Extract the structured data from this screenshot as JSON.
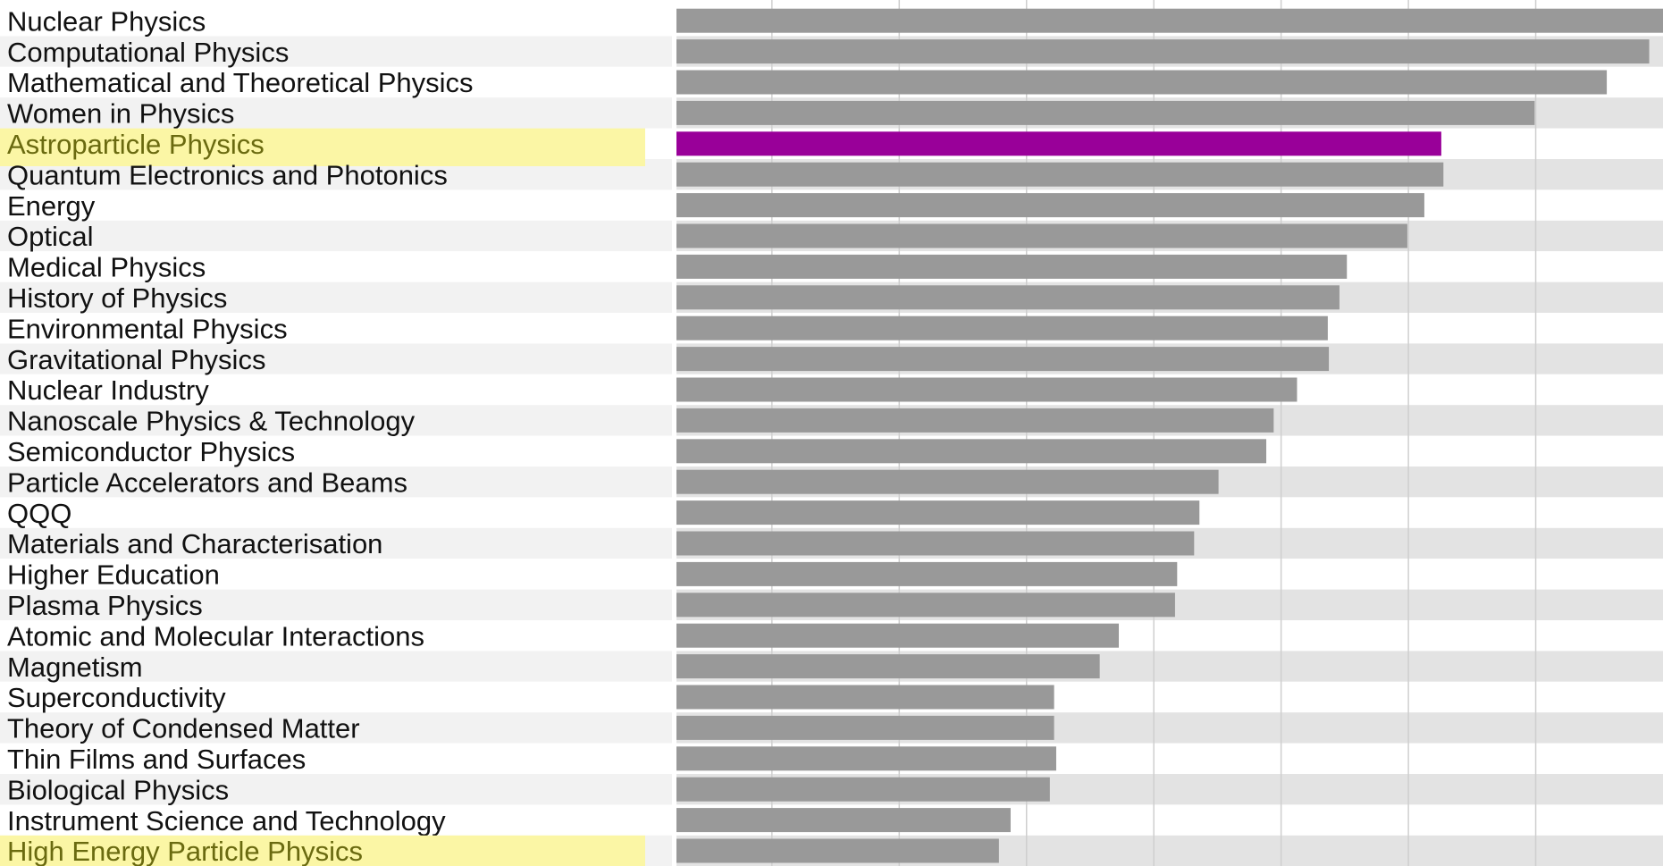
{
  "chart_data": {
    "type": "bar",
    "orientation": "horizontal",
    "title": "",
    "xlabel": "",
    "ylabel": "",
    "xlim": [
      0,
      93
    ],
    "grid": true,
    "categories": [
      "Nuclear Physics",
      "Computational Physics",
      "Mathematical and Theoretical Physics",
      "Women in Physics",
      "Astroparticle Physics",
      "Quantum Electronics and Photonics",
      "Energy",
      "Optical",
      "Medical Physics",
      "History of Physics",
      "Environmental Physics",
      "Gravitational Physics",
      "Nuclear Industry",
      "Nanoscale Physics & Technology",
      "Semiconductor Physics",
      "Particle Accelerators and Beams",
      "QQQ",
      "Materials and Characterisation",
      "Higher Education",
      "Plasma Physics",
      "Atomic and Molecular Interactions",
      "Magnetism",
      "Superconductivity",
      "Theory of Condensed Matter",
      "Thin Films and Surfaces",
      "Biological Physics",
      "Instrument Science and Technology",
      "High Energy Particle Physics"
    ],
    "values": [
      93.3,
      91.7,
      87.7,
      80.9,
      72.1,
      72.3,
      70.5,
      68.9,
      63.2,
      62.5,
      61.4,
      61.5,
      58.5,
      56.3,
      55.6,
      51.1,
      49.3,
      48.8,
      47.2,
      47.0,
      41.7,
      39.9,
      35.6,
      35.6,
      35.8,
      35.2,
      31.5,
      30.4
    ],
    "highlighted_categories": [
      "Astroparticle Physics",
      "High Energy Particle Physics"
    ],
    "colors": {
      "bar": "#999999",
      "highlight_bar": "#990099",
      "label_highlight_bg": "#fbf6a5",
      "label_highlight_text": "#6a6a10"
    }
  }
}
